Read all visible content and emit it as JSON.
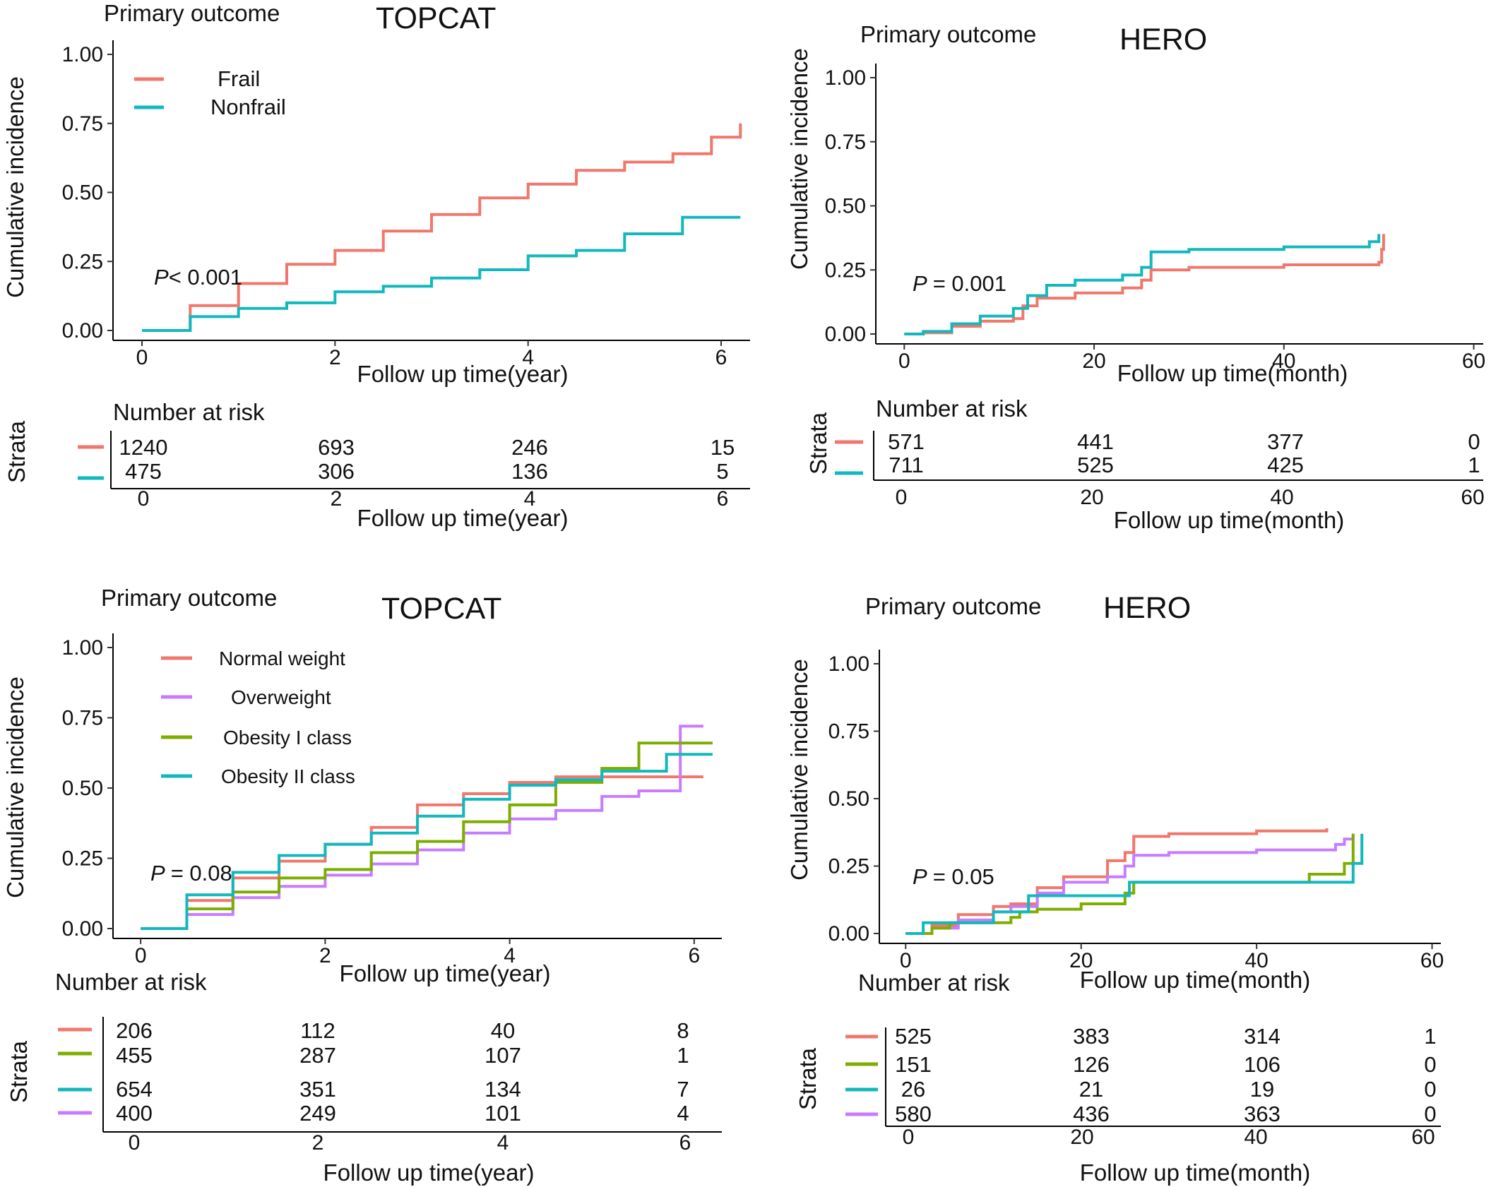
{
  "colors": {
    "red": "#F0776C",
    "cyan": "#12B8BD",
    "purple": "#C77CFF",
    "green": "#7CAE00"
  },
  "chart_data": [
    {
      "type": "line",
      "panel": "top-left",
      "title": "TOPCAT",
      "subtitle": "Primary outcome",
      "xlabel": "Follow up time(year)",
      "ylabel": "Cumulative incidence",
      "xlim": [
        -0.3,
        6.3
      ],
      "ylim": [
        0,
        1
      ],
      "xticks": [
        "0",
        "2",
        "4",
        "6"
      ],
      "yticks": [
        "0.00",
        "0.25",
        "0.50",
        "0.75",
        "1.00"
      ],
      "pvalue": "< 0.001",
      "legend_position": "top-left",
      "series": [
        {
          "name": "Frail",
          "color": "#F0776C",
          "x": [
            0,
            0.5,
            1,
            1.5,
            2,
            2.5,
            3,
            3.5,
            4,
            4.5,
            5,
            5.5,
            5.9,
            6.2
          ],
          "y": [
            0,
            0.09,
            0.17,
            0.24,
            0.29,
            0.36,
            0.42,
            0.48,
            0.53,
            0.58,
            0.61,
            0.64,
            0.7,
            0.75
          ]
        },
        {
          "name": "Nonfrail",
          "color": "#12B8BD",
          "x": [
            0,
            0.5,
            1,
            1.5,
            2,
            2.5,
            3,
            3.5,
            4,
            4.5,
            5,
            5.4,
            5.6,
            6.2
          ],
          "y": [
            0,
            0.05,
            0.08,
            0.1,
            0.14,
            0.16,
            0.19,
            0.22,
            0.27,
            0.29,
            0.35,
            0.35,
            0.41,
            0.41
          ]
        }
      ],
      "risk_table": {
        "title": "Number at risk",
        "strata_label": "Strata",
        "xticks": [
          "0",
          "2",
          "4",
          "6"
        ],
        "rows": [
          {
            "color": "#F0776C",
            "values": [
              "1240",
              "693",
              "246",
              "15"
            ]
          },
          {
            "color": "#12B8BD",
            "values": [
              "475",
              "306",
              "136",
              "5"
            ]
          }
        ],
        "xlabel": "Follow up time(year)"
      }
    },
    {
      "type": "line",
      "panel": "top-right",
      "title": "HERO",
      "subtitle": "Primary outcome",
      "xlabel": "Follow up time(month)",
      "ylabel": "Cumulative incidence",
      "xlim": [
        -3,
        61
      ],
      "ylim": [
        0,
        1
      ],
      "xticks": [
        "0",
        "20",
        "40",
        "60"
      ],
      "yticks": [
        "0.00",
        "0.25",
        "0.50",
        "0.75",
        "1.00"
      ],
      "pvalue": "= 0.001",
      "series": [
        {
          "color": "#F0776C",
          "x": [
            0,
            2,
            5,
            8,
            11.5,
            12.5,
            14,
            18,
            23,
            25,
            26,
            30,
            40,
            50,
            50.3,
            50.5
          ],
          "y": [
            0,
            0.005,
            0.03,
            0.05,
            0.06,
            0.11,
            0.14,
            0.16,
            0.18,
            0.21,
            0.25,
            0.26,
            0.27,
            0.28,
            0.33,
            0.39
          ]
        },
        {
          "color": "#12B8BD",
          "x": [
            0,
            2,
            5,
            8,
            11.5,
            13,
            15,
            18,
            23,
            25,
            26,
            30,
            40,
            49,
            50
          ],
          "y": [
            0,
            0.01,
            0.04,
            0.07,
            0.1,
            0.15,
            0.19,
            0.21,
            0.23,
            0.26,
            0.32,
            0.33,
            0.34,
            0.36,
            0.39
          ]
        }
      ],
      "risk_table": {
        "title": "Number at risk",
        "strata_label": "Strata",
        "xticks": [
          "0",
          "20",
          "40",
          "60"
        ],
        "rows": [
          {
            "color": "#F0776C",
            "values": [
              "571",
              "441",
              "377",
              "0"
            ]
          },
          {
            "color": "#12B8BD",
            "values": [
              "711",
              "525",
              "425",
              "1"
            ]
          }
        ],
        "xlabel": "Follow up time(month)"
      }
    },
    {
      "type": "line",
      "panel": "bottom-left",
      "title": "TOPCAT",
      "subtitle": "Primary outcome",
      "xlabel": "Follow up time(year)",
      "ylabel": "Cumulative incidence",
      "xlim": [
        -0.3,
        6.3
      ],
      "ylim": [
        0,
        1
      ],
      "xticks": [
        "0",
        "2",
        "4",
        "6"
      ],
      "yticks": [
        "0.00",
        "0.25",
        "0.50",
        "0.75",
        "1.00"
      ],
      "pvalue": "= 0.08",
      "legend_position": "top-left",
      "series": [
        {
          "name": "Normal weight",
          "color": "#F0776C",
          "x": [
            0,
            0.5,
            1,
            1.5,
            2,
            2.5,
            3,
            3.5,
            4,
            4.5,
            5,
            5.5,
            6.1
          ],
          "y": [
            0,
            0.1,
            0.18,
            0.24,
            0.3,
            0.36,
            0.44,
            0.48,
            0.52,
            0.54,
            0.54,
            0.54,
            0.54
          ]
        },
        {
          "name": "Overweight",
          "color": "#C77CFF",
          "x": [
            0,
            0.5,
            1,
            1.5,
            2,
            2.5,
            3,
            3.5,
            4,
            4.5,
            5,
            5.4,
            5.5,
            5.8,
            5.85,
            6.1
          ],
          "y": [
            0,
            0.05,
            0.11,
            0.15,
            0.19,
            0.23,
            0.28,
            0.34,
            0.39,
            0.42,
            0.47,
            0.49,
            0.49,
            0.49,
            0.72,
            0.72
          ]
        },
        {
          "name": "Obesity I class",
          "color": "#7CAE00",
          "x": [
            0,
            0.5,
            1,
            1.5,
            2,
            2.5,
            3,
            3.5,
            4,
            4.5,
            5,
            5.35,
            5.4,
            6.2
          ],
          "y": [
            0,
            0.07,
            0.13,
            0.18,
            0.21,
            0.27,
            0.31,
            0.38,
            0.44,
            0.52,
            0.57,
            0.57,
            0.66,
            0.66
          ]
        },
        {
          "name": "Obesity II class",
          "color": "#12B8BD",
          "x": [
            0,
            0.5,
            1,
            1.5,
            2,
            2.5,
            3,
            3.5,
            4,
            4.5,
            5,
            5.5,
            5.7,
            6.2
          ],
          "y": [
            0,
            0.12,
            0.2,
            0.26,
            0.3,
            0.34,
            0.4,
            0.46,
            0.51,
            0.53,
            0.56,
            0.56,
            0.62,
            0.62
          ]
        }
      ],
      "risk_table": {
        "title": "Number at risk",
        "strata_label": "Strata",
        "xticks": [
          "0",
          "2",
          "4",
          "6"
        ],
        "rows": [
          {
            "color": "#F0776C",
            "values": [
              "206",
              "112",
              "40",
              "8"
            ]
          },
          {
            "color": "#7CAE00",
            "values": [
              "455",
              "287",
              "107",
              "1"
            ]
          },
          {
            "color": "#12B8BD",
            "values": [
              "654",
              "351",
              "134",
              "7"
            ]
          },
          {
            "color": "#C77CFF",
            "values": [
              "400",
              "249",
              "101",
              "4"
            ]
          }
        ],
        "xlabel": "Follow up time(year)"
      }
    },
    {
      "type": "line",
      "panel": "bottom-right",
      "title": "HERO",
      "subtitle": "Primary outcome",
      "xlabel": "Follow up time(month)",
      "ylabel": "Cumulative incidence",
      "xlim": [
        -3,
        61
      ],
      "ylim": [
        0,
        1
      ],
      "xticks": [
        "0",
        "20",
        "40",
        "60"
      ],
      "yticks": [
        "0.00",
        "0.25",
        "0.50",
        "0.75",
        "1.00"
      ],
      "pvalue": "= 0.05",
      "series": [
        {
          "color": "#F0776C",
          "x": [
            0,
            3,
            6,
            10,
            12,
            15,
            18,
            23,
            25,
            26,
            30,
            40,
            48
          ],
          "y": [
            0,
            0.03,
            0.07,
            0.1,
            0.11,
            0.17,
            0.21,
            0.27,
            0.3,
            0.36,
            0.37,
            0.38,
            0.39
          ]
        },
        {
          "color": "#C77CFF",
          "x": [
            0,
            3,
            6,
            10,
            12,
            15,
            18,
            23,
            25,
            26,
            30,
            40,
            49,
            50,
            51
          ],
          "y": [
            0,
            0.02,
            0.05,
            0.08,
            0.1,
            0.15,
            0.19,
            0.21,
            0.25,
            0.29,
            0.3,
            0.31,
            0.33,
            0.35,
            0.37
          ]
        },
        {
          "color": "#7CAE00",
          "x": [
            0,
            3,
            5,
            10,
            12,
            13,
            15,
            20,
            25,
            26,
            30,
            40,
            46,
            50,
            51
          ],
          "y": [
            0,
            0.02,
            0.04,
            0.04,
            0.06,
            0.08,
            0.09,
            0.11,
            0.15,
            0.19,
            0.19,
            0.19,
            0.22,
            0.26,
            0.37
          ]
        },
        {
          "color": "#12B8BD",
          "x": [
            0,
            2,
            4,
            9,
            10,
            13,
            14,
            18,
            25,
            25.5,
            30,
            40,
            50,
            51,
            52
          ],
          "y": [
            0,
            0.04,
            0.04,
            0.04,
            0.08,
            0.08,
            0.14,
            0.14,
            0.14,
            0.19,
            0.19,
            0.19,
            0.19,
            0.26,
            0.37
          ]
        }
      ],
      "risk_table": {
        "title": "Number at risk",
        "strata_label": "Strata",
        "xticks": [
          "0",
          "20",
          "40",
          "60"
        ],
        "rows": [
          {
            "color": "#F0776C",
            "values": [
              "525",
              "383",
              "314",
              "1"
            ]
          },
          {
            "color": "#7CAE00",
            "values": [
              "151",
              "126",
              "106",
              "0"
            ]
          },
          {
            "color": "#12B8BD",
            "values": [
              "26",
              "21",
              "19",
              "0"
            ]
          },
          {
            "color": "#C77CFF",
            "values": [
              "580",
              "436",
              "363",
              "0"
            ]
          }
        ],
        "xlabel": "Follow up time(month)"
      }
    }
  ]
}
